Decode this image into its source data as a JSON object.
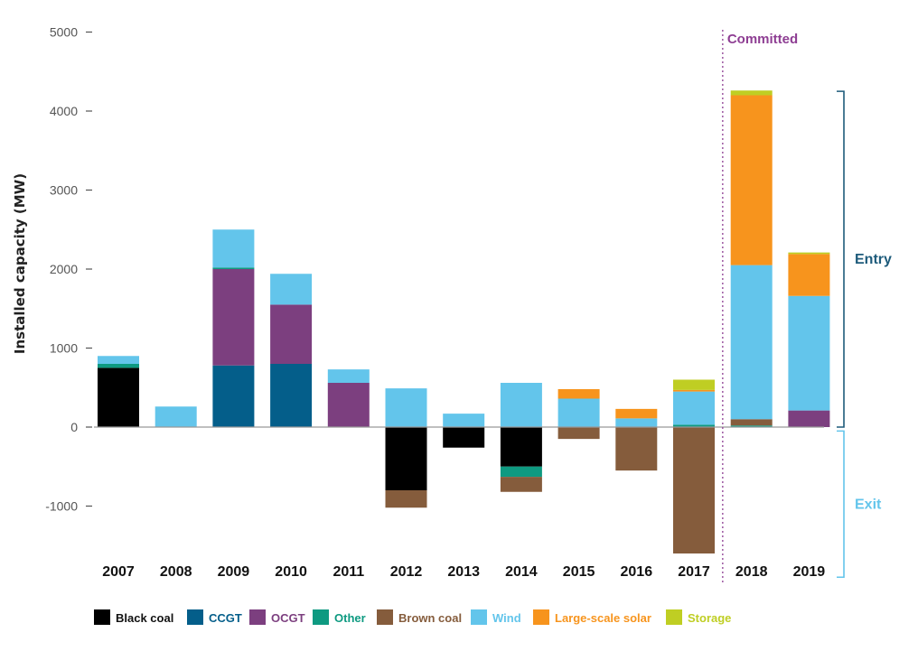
{
  "chart_data": {
    "type": "bar",
    "stacked": true,
    "ylabel": "Installed capacity (MW)",
    "ylim": [
      -1600,
      5000
    ],
    "yticks": [
      5000,
      4000,
      3000,
      2000,
      1000,
      0,
      -1000
    ],
    "categories": [
      "2007",
      "2008",
      "2009",
      "2010",
      "2011",
      "2012",
      "2013",
      "2014",
      "2015",
      "2016",
      "2017",
      "2018",
      "2019"
    ],
    "series": [
      {
        "name": "Black coal",
        "color": "#000000",
        "values": [
          750,
          0,
          0,
          0,
          0,
          -800,
          -260,
          -500,
          0,
          0,
          0,
          0,
          0
        ]
      },
      {
        "name": "CCGT",
        "color": "#045e8a",
        "values": [
          0,
          0,
          780,
          800,
          0,
          0,
          0,
          0,
          0,
          0,
          0,
          0,
          0
        ]
      },
      {
        "name": "OCGT",
        "color": "#7c3f7f",
        "values": [
          0,
          0,
          1220,
          750,
          560,
          0,
          0,
          0,
          0,
          0,
          0,
          0,
          210
        ]
      },
      {
        "name": "Other",
        "color": "#0e9a81",
        "values": [
          50,
          0,
          20,
          0,
          0,
          0,
          0,
          -130,
          0,
          0,
          30,
          20,
          0
        ]
      },
      {
        "name": "Brown coal",
        "color": "#855c3c",
        "values": [
          0,
          0,
          0,
          0,
          0,
          -220,
          0,
          -190,
          -150,
          -550,
          -1600,
          80,
          0
        ]
      },
      {
        "name": "Wind",
        "color": "#63c5eb",
        "values": [
          100,
          260,
          480,
          390,
          170,
          490,
          170,
          560,
          360,
          110,
          420,
          1950,
          1450
        ]
      },
      {
        "name": "Large-scale solar",
        "color": "#f7941d",
        "values": [
          0,
          0,
          0,
          0,
          0,
          0,
          0,
          0,
          120,
          120,
          20,
          2150,
          530
        ]
      },
      {
        "name": "Storage",
        "color": "#bfce23",
        "values": [
          0,
          0,
          0,
          0,
          0,
          0,
          0,
          0,
          0,
          0,
          130,
          60,
          20
        ]
      }
    ],
    "committed": {
      "label": "Committed",
      "starts_at": "2018",
      "color": "#8e3e93"
    },
    "brackets": [
      {
        "label": "Entry",
        "color": "#1e5b7b",
        "from": 0,
        "to": 4250
      },
      {
        "label": "Exit",
        "color": "#63c5eb",
        "from": -50,
        "to": -1900
      }
    ]
  }
}
